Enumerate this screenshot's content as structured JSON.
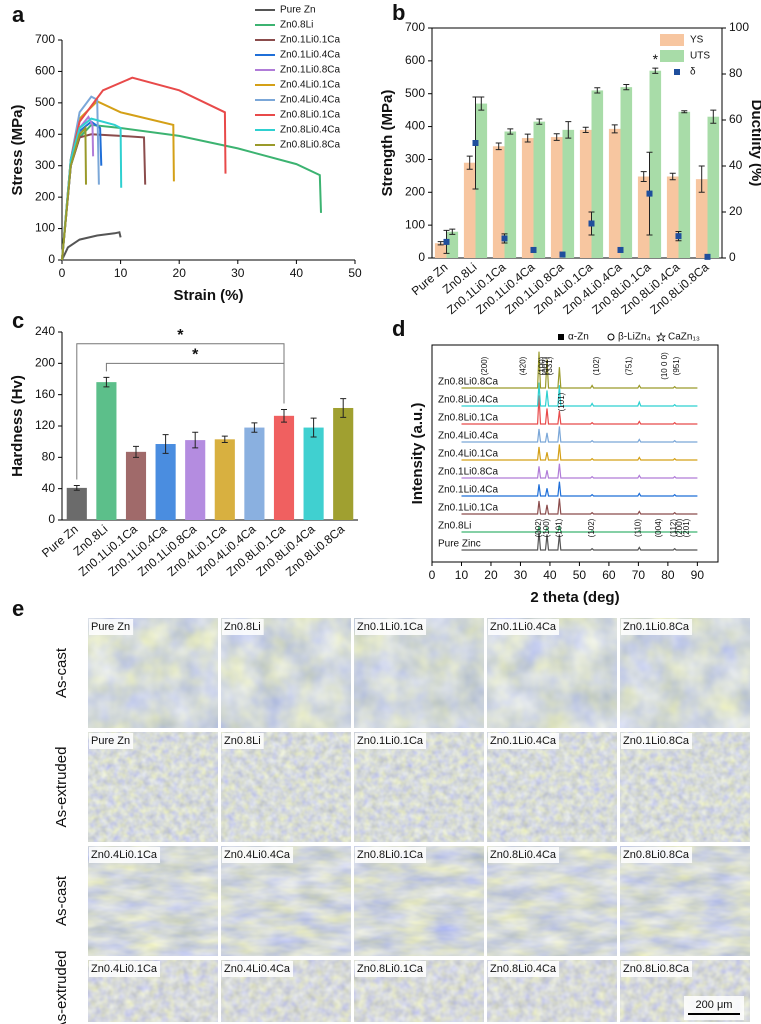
{
  "chart_data": [
    {
      "type": "line",
      "label": "a",
      "xlabel": "Strain (%)",
      "ylabel": "Stress (MPa)",
      "xlim": [
        0,
        50
      ],
      "xticks": [
        0,
        10,
        20,
        30,
        40,
        50
      ],
      "ylim": [
        0,
        700
      ],
      "yticks": [
        0,
        100,
        200,
        300,
        400,
        500,
        600,
        700
      ],
      "legend": "upper right",
      "series": [
        {
          "name": "Pure Zn",
          "color": "#555555",
          "x": [
            0,
            1,
            3,
            6,
            9,
            9.8,
            10
          ],
          "values": [
            0,
            40,
            65,
            78,
            85,
            88,
            72
          ]
        },
        {
          "name": "Zn0.8Li",
          "color": "#3cb371",
          "x": [
            0,
            1.5,
            3,
            5,
            10,
            20,
            30,
            40,
            44,
            44.2
          ],
          "values": [
            0,
            300,
            390,
            430,
            420,
            395,
            355,
            305,
            270,
            150
          ]
        },
        {
          "name": "Zn0.1Li0.1Ca",
          "color": "#8b4c4c",
          "x": [
            0,
            1.5,
            3,
            5,
            10,
            14,
            14.2
          ],
          "values": [
            0,
            300,
            390,
            400,
            395,
            390,
            240
          ]
        },
        {
          "name": "Zn0.1Li0.4Ca",
          "color": "#1f6fd8",
          "x": [
            0,
            1.5,
            3,
            5,
            6.5,
            6.7
          ],
          "values": [
            0,
            300,
            410,
            440,
            420,
            300
          ]
        },
        {
          "name": "Zn0.1Li0.8Ca",
          "color": "#b07cd8",
          "x": [
            0,
            1.5,
            3,
            4.5,
            5.2,
            5.3
          ],
          "values": [
            0,
            300,
            420,
            455,
            430,
            330
          ]
        },
        {
          "name": "Zn0.4Li0.1Ca",
          "color": "#d4a017",
          "x": [
            0,
            1.5,
            3,
            6,
            10,
            19,
            19.1
          ],
          "values": [
            0,
            320,
            450,
            505,
            470,
            430,
            250
          ]
        },
        {
          "name": "Zn0.4Li0.4Ca",
          "color": "#7ba7d8",
          "x": [
            0,
            1.5,
            3,
            5,
            6,
            6.3
          ],
          "values": [
            0,
            320,
            470,
            520,
            510,
            240
          ]
        },
        {
          "name": "Zn0.8Li0.1Ca",
          "color": "#e84a4a",
          "x": [
            0,
            1.5,
            3,
            7,
            12,
            20,
            27.8,
            27.9
          ],
          "values": [
            0,
            320,
            440,
            540,
            580,
            540,
            470,
            275
          ]
        },
        {
          "name": "Zn0.8Li0.4Ca",
          "color": "#2fd0d0",
          "x": [
            0,
            1.5,
            3,
            5,
            9,
            10,
            10.1
          ],
          "values": [
            0,
            320,
            420,
            450,
            430,
            420,
            230
          ]
        },
        {
          "name": "Zn0.8Li0.8Ca",
          "color": "#9a9a2a",
          "x": [
            0,
            1.5,
            3,
            4,
            4.1
          ],
          "values": [
            0,
            300,
            400,
            420,
            240
          ]
        }
      ]
    },
    {
      "type": "bar",
      "label": "b",
      "ylabel": "Strength (MPa)",
      "y2label": "Ductility (%)",
      "categories": [
        "Pure Zn",
        "Zn0.8Li",
        "Zn0.1Li0.1Ca",
        "Zn0.1Li0.4Ca",
        "Zn0.1Li0.8Ca",
        "Zn0.4Li0.1Ca",
        "Zn0.4Li0.4Ca",
        "Zn0.8Li0.1Ca",
        "Zn0.8Li0.4Ca",
        "Zn0.8Li0.8Ca"
      ],
      "ylim": [
        0,
        700
      ],
      "yticks": [
        0,
        100,
        200,
        300,
        400,
        500,
        600,
        700
      ],
      "y2lim": [
        0,
        100
      ],
      "y2ticks": [
        0,
        20,
        40,
        60,
        80,
        100
      ],
      "legend": "upper right",
      "series": [
        {
          "name": "YS",
          "color": "#f7c6a0",
          "values": [
            45,
            290,
            340,
            365,
            368,
            390,
            393,
            248,
            248,
            240
          ],
          "errors": [
            5,
            20,
            10,
            12,
            10,
            8,
            12,
            15,
            10,
            40
          ]
        },
        {
          "name": "UTS",
          "color": "#a8dca8",
          "values": [
            80,
            470,
            385,
            415,
            390,
            510,
            520,
            570,
            445,
            430
          ],
          "errors": [
            8,
            20,
            8,
            8,
            25,
            8,
            8,
            8,
            3,
            20
          ]
        },
        {
          "name": "δ",
          "type": "scatter",
          "axis": "y2",
          "color": "#1f4e9c",
          "values": [
            7,
            50,
            8.5,
            3.5,
            1.5,
            15,
            3.5,
            28,
            9.5,
            0.5
          ],
          "errors": [
            5,
            20,
            2,
            1,
            0.5,
            5,
            1,
            18,
            2,
            0.3
          ]
        }
      ],
      "annotations": [
        {
          "text": "*",
          "category": "Zn0.8Li0.1Ca"
        }
      ]
    },
    {
      "type": "bar",
      "label": "c",
      "ylabel": "Hardness (Hv)",
      "categories": [
        "Pure Zn",
        "Zn0.8Li",
        "Zn0.1Li0.1Ca",
        "Zn0.1Li0.4Ca",
        "Zn0.1Li0.8Ca",
        "Zn0.4Li0.1Ca",
        "Zn0.4Li0.4Ca",
        "Zn0.8Li0.1Ca",
        "Zn0.8Li0.4Ca",
        "Zn0.8Li0.8Ca"
      ],
      "values": [
        41,
        176,
        87,
        97,
        102,
        103,
        118,
        133,
        118,
        143
      ],
      "errors": [
        3,
        6,
        7,
        12,
        10,
        4,
        6,
        8,
        12,
        12
      ],
      "colors": [
        "#6b6b6b",
        "#5cbf8a",
        "#a06a6a",
        "#4a8de0",
        "#b48ce0",
        "#d8b040",
        "#8ab0e0",
        "#f06060",
        "#40d0d0",
        "#a0a030"
      ],
      "ylim": [
        0,
        240
      ],
      "yticks": [
        0,
        40,
        80,
        120,
        160,
        200,
        240
      ],
      "significance": [
        {
          "from": "Pure Zn",
          "to": "Zn0.8Li0.1Ca",
          "level": 225,
          "text": "*"
        },
        {
          "from": "Zn0.8Li",
          "to": "Zn0.8Li0.1Ca",
          "level": 200,
          "text": "*"
        }
      ]
    },
    {
      "type": "line",
      "label": "d",
      "xlabel": "2 theta (deg)",
      "ylabel": "Intensity (a.u.)",
      "offset": true,
      "xlim": [
        0,
        97
      ],
      "xticks": [
        0,
        10,
        20,
        30,
        40,
        50,
        60,
        70,
        80,
        90
      ],
      "phases": [
        "α-Zn",
        "β-LiZn₄",
        "CaZn₁₃"
      ],
      "x": [
        10,
        35.8,
        36.3,
        36.8,
        38.5,
        39,
        39.5,
        42.7,
        43.2,
        43.7,
        53.8,
        54.3,
        54.8,
        69.8,
        70.3,
        70.8,
        81.8,
        82.3,
        82.8,
        90
      ],
      "series": [
        {
          "name": "Pure Zinc",
          "color": "#555555",
          "values": [
            0,
            0,
            14,
            0,
            0,
            12,
            0,
            0,
            12,
            0,
            0,
            1,
            0,
            0,
            2,
            0,
            0,
            1,
            0,
            0
          ]
        },
        {
          "name": "Zn0.8Li",
          "color": "#3cb371",
          "values": [
            0,
            0,
            4,
            0,
            0,
            3,
            0,
            0,
            5,
            0,
            0,
            1,
            0,
            0,
            1,
            0,
            0,
            0.5,
            0,
            0
          ]
        },
        {
          "name": "Zn0.1Li0.1Ca",
          "color": "#8b4c4c",
          "values": [
            0,
            0,
            10,
            0,
            0,
            7,
            0,
            0,
            12,
            0,
            0,
            1,
            0,
            0,
            2,
            0,
            0,
            1,
            0,
            0
          ]
        },
        {
          "name": "Zn0.1Li0.4Ca",
          "color": "#1f6fd8",
          "values": [
            0,
            0,
            9,
            0,
            0,
            6,
            0,
            0,
            11,
            0,
            0,
            1,
            0,
            0,
            2,
            0,
            0,
            1,
            0,
            0
          ]
        },
        {
          "name": "Zn0.1Li0.8Ca",
          "color": "#b07cd8",
          "values": [
            0,
            0,
            9,
            0,
            0,
            6,
            0,
            0,
            11,
            0,
            0,
            1,
            0,
            0,
            2,
            0,
            0,
            1,
            0,
            0
          ]
        },
        {
          "name": "Zn0.4Li0.1Ca",
          "color": "#d4a017",
          "values": [
            0,
            0,
            10,
            0,
            0,
            6,
            0,
            0,
            12,
            0,
            0,
            1,
            0,
            0,
            2,
            0,
            0,
            1,
            0,
            0
          ]
        },
        {
          "name": "Zn0.4Li0.4Ca",
          "color": "#7ba7d8",
          "values": [
            0,
            0,
            10,
            0,
            0,
            7,
            0,
            0,
            12,
            0,
            0,
            1,
            0,
            0,
            2,
            0,
            0,
            1,
            0,
            0
          ]
        },
        {
          "name": "Zn0.8Li0.1Ca",
          "color": "#e84a4a",
          "values": [
            0,
            0,
            22,
            0,
            0,
            12,
            0,
            0,
            10,
            0,
            0,
            1,
            0,
            0,
            2,
            0,
            0,
            1,
            0,
            0
          ]
        },
        {
          "name": "Zn0.8Li0.4Ca",
          "color": "#2fd0d0",
          "values": [
            0,
            0,
            18,
            0,
            0,
            12,
            0,
            0,
            16,
            0,
            0,
            2,
            0,
            0,
            3,
            0,
            0,
            1,
            0,
            0
          ]
        },
        {
          "name": "Zn0.8Li0.8Ca",
          "color": "#9a9a2a",
          "values": [
            0,
            0,
            28,
            0,
            0,
            22,
            0,
            0,
            16,
            0,
            0,
            2,
            0,
            0,
            2,
            0,
            0,
            1,
            0,
            0
          ]
        }
      ],
      "annotations": [
        {
          "text": "(200)",
          "x": 18,
          "series": "Zn0.8Li0.8Ca"
        },
        {
          "text": "(420)",
          "x": 31,
          "series": "Zn0.8Li0.8Ca"
        },
        {
          "text": "(100)",
          "x": 37.5,
          "series": "Zn0.8Li0.8Ca"
        },
        {
          "text": "(002)",
          "x": 38.7,
          "series": "Zn0.8Li0.8Ca"
        },
        {
          "text": "(331)",
          "x": 40,
          "series": "Zn0.8Li0.8Ca"
        },
        {
          "text": "(102)",
          "x": 56,
          "series": "Zn0.8Li0.8Ca"
        },
        {
          "text": "(751)",
          "x": 67,
          "series": "Zn0.8Li0.8Ca"
        },
        {
          "text": "(10 0 0)",
          "x": 79,
          "series": "Zn0.8Li0.8Ca"
        },
        {
          "text": "(951)",
          "x": 83,
          "series": "Zn0.8Li0.8Ca"
        },
        {
          "text": "(101)",
          "x": 44,
          "series": "Zn0.8Li0.1Ca"
        },
        {
          "text": "(002)",
          "x": 36.3,
          "series": "Pure Zinc"
        },
        {
          "text": "(100)",
          "x": 39,
          "series": "Pure Zinc"
        },
        {
          "text": "(101)",
          "x": 43.2,
          "series": "Pure Zinc"
        },
        {
          "text": "(102)",
          "x": 54.3,
          "series": "Pure Zinc"
        },
        {
          "text": "(110)",
          "x": 70,
          "series": "Pure Zinc"
        },
        {
          "text": "(004)",
          "x": 77,
          "series": "Pure Zinc"
        },
        {
          "text": "(112)",
          "x": 82,
          "series": "Pure Zinc"
        },
        {
          "text": "(200)",
          "x": 84,
          "series": "Pure Zinc"
        },
        {
          "text": "(201)",
          "x": 86.5,
          "series": "Pure Zinc"
        }
      ]
    }
  ],
  "micrographs": {
    "label": "e",
    "scale_bar": "200 μm",
    "row_labels": [
      "As-cast",
      "As-extruded",
      "As-cast",
      "As-extruded"
    ],
    "tiles": [
      [
        "Pure Zn",
        "Zn0.8Li",
        "Zn0.1Li0.1Ca",
        "Zn0.1Li0.4Ca",
        "Zn0.1Li0.8Ca"
      ],
      [
        "Pure Zn",
        "Zn0.8Li",
        "Zn0.1Li0.1Ca",
        "Zn0.1Li0.4Ca",
        "Zn0.1Li0.8Ca"
      ],
      [
        "Zn0.4Li0.1Ca",
        "Zn0.4Li0.4Ca",
        "Zn0.8Li0.1Ca",
        "Zn0.8Li0.4Ca",
        "Zn0.8Li0.8Ca"
      ],
      [
        "Zn0.4Li0.1Ca",
        "Zn0.4Li0.4Ca",
        "Zn0.8Li0.1Ca",
        "Zn0.8Li0.4Ca",
        "Zn0.8Li0.8Ca"
      ]
    ]
  }
}
